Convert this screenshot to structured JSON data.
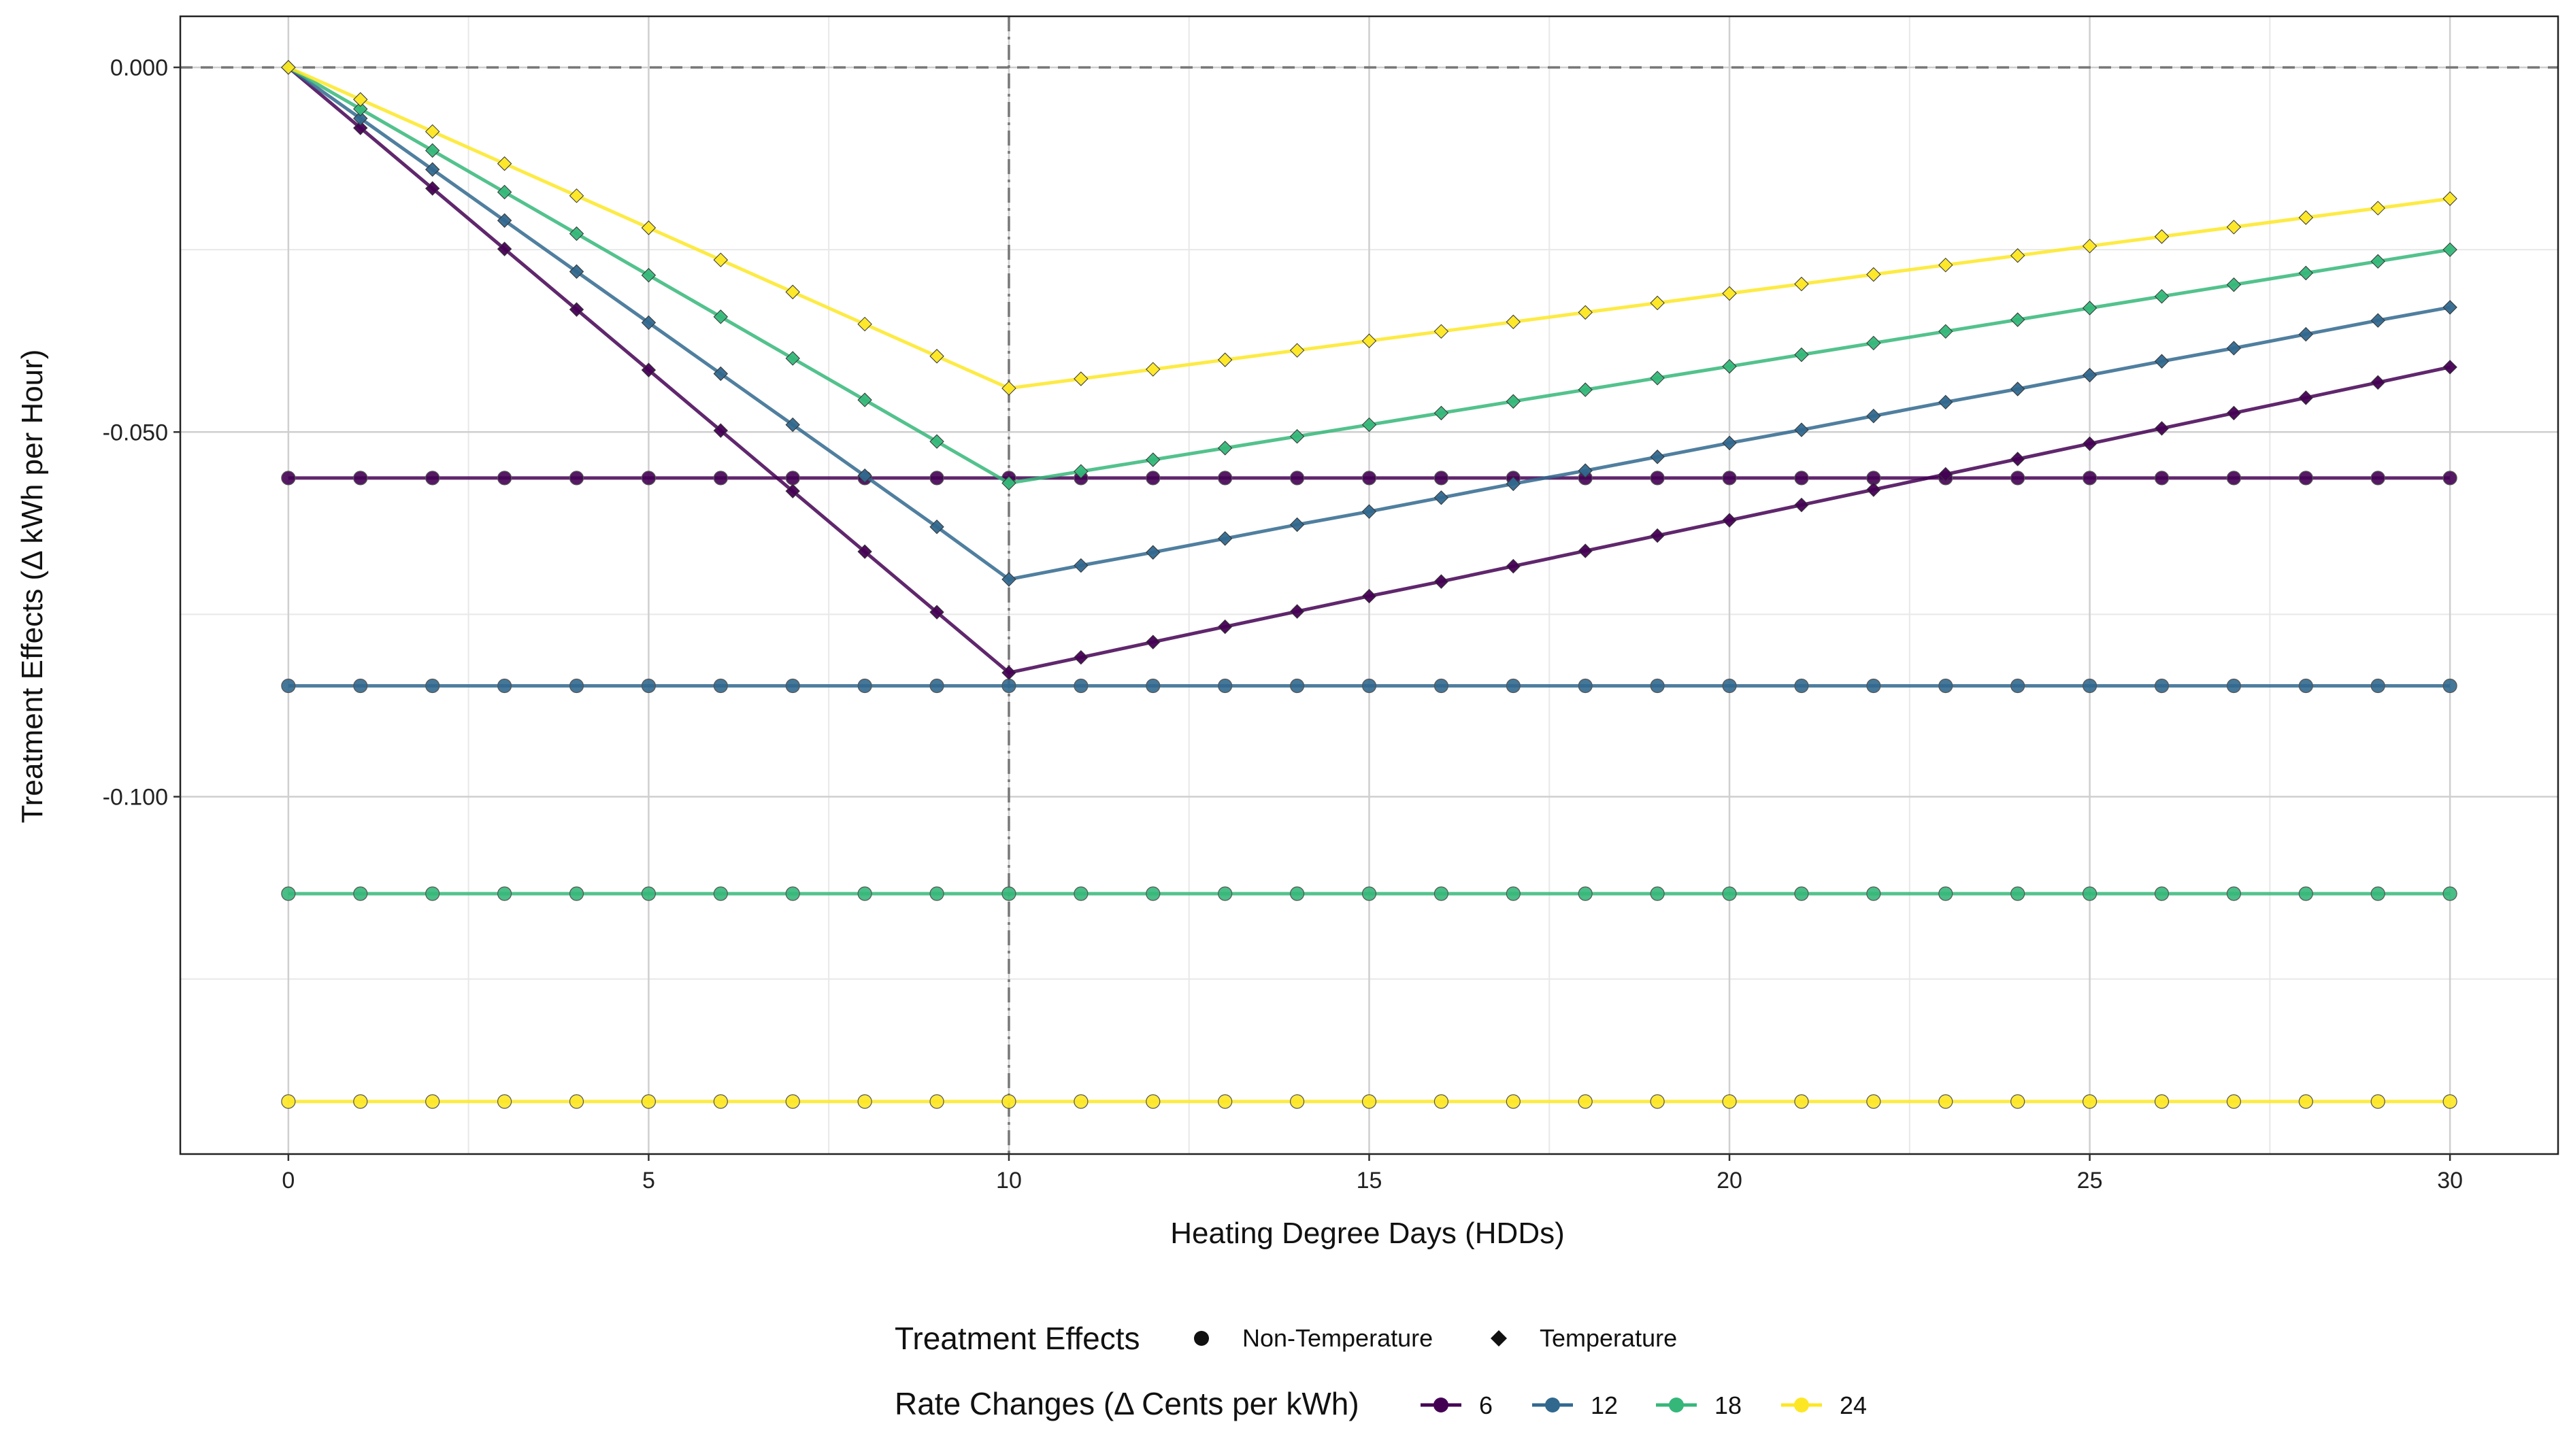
{
  "chart_data": {
    "type": "line",
    "title": "",
    "xlabel": "Heating Degree Days  (HDDs)",
    "ylabel": "Treatment Effects  (Δ kWh per Hour)",
    "xlim": [
      -1.5,
      31.5
    ],
    "ylim": [
      -0.149,
      0.007
    ],
    "x_ticks": [
      0,
      5,
      10,
      15,
      20,
      25,
      30
    ],
    "x_tick_labels": [
      "0",
      "5",
      "10",
      "15",
      "20",
      "25",
      "30"
    ],
    "y_ticks": [
      0.0,
      -0.05,
      -0.1
    ],
    "y_tick_labels": [
      "0.000",
      "-0.050",
      "-0.100"
    ],
    "minor_grid_y": [
      -0.025,
      -0.075,
      -0.125
    ],
    "minor_grid_x": [
      2.5,
      7.5,
      12.5,
      17.5,
      22.5,
      27.5
    ],
    "grid": true,
    "reference_lines": {
      "hline_y": 0.0,
      "vline_x": 10
    },
    "x": [
      0,
      1,
      2,
      3,
      4,
      5,
      6,
      7,
      8,
      9,
      10,
      11,
      12,
      13,
      14,
      15,
      16,
      17,
      18,
      19,
      20,
      21,
      22,
      23,
      24,
      25,
      26,
      27,
      28,
      29,
      30
    ],
    "series": [
      {
        "rate": "6",
        "effect": "Non-Temperature",
        "color": "#440154",
        "values": [
          -0.0563,
          -0.0563,
          -0.0563,
          -0.0563,
          -0.0563,
          -0.0563,
          -0.0563,
          -0.0563,
          -0.0563,
          -0.0563,
          -0.0563,
          -0.0563,
          -0.0563,
          -0.0563,
          -0.0563,
          -0.0563,
          -0.0563,
          -0.0563,
          -0.0563,
          -0.0563,
          -0.0563,
          -0.0563,
          -0.0563,
          -0.0563,
          -0.0563,
          -0.0563,
          -0.0563,
          -0.0563,
          -0.0563,
          -0.0563,
          -0.0563
        ]
      },
      {
        "rate": "12",
        "effect": "Non-Temperature",
        "color": "#31688e",
        "values": [
          -0.0848,
          -0.0848,
          -0.0848,
          -0.0848,
          -0.0848,
          -0.0848,
          -0.0848,
          -0.0848,
          -0.0848,
          -0.0848,
          -0.0848,
          -0.0848,
          -0.0848,
          -0.0848,
          -0.0848,
          -0.0848,
          -0.0848,
          -0.0848,
          -0.0848,
          -0.0848,
          -0.0848,
          -0.0848,
          -0.0848,
          -0.0848,
          -0.0848,
          -0.0848,
          -0.0848,
          -0.0848,
          -0.0848,
          -0.0848,
          -0.0848
        ]
      },
      {
        "rate": "18",
        "effect": "Non-Temperature",
        "color": "#35b779",
        "values": [
          -0.1133,
          -0.1133,
          -0.1133,
          -0.1133,
          -0.1133,
          -0.1133,
          -0.1133,
          -0.1133,
          -0.1133,
          -0.1133,
          -0.1133,
          -0.1133,
          -0.1133,
          -0.1133,
          -0.1133,
          -0.1133,
          -0.1133,
          -0.1133,
          -0.1133,
          -0.1133,
          -0.1133,
          -0.1133,
          -0.1133,
          -0.1133,
          -0.1133,
          -0.1133,
          -0.1133,
          -0.1133,
          -0.1133,
          -0.1133,
          -0.1133
        ]
      },
      {
        "rate": "24",
        "effect": "Non-Temperature",
        "color": "#fde725",
        "values": [
          -0.1418,
          -0.1418,
          -0.1418,
          -0.1418,
          -0.1418,
          -0.1418,
          -0.1418,
          -0.1418,
          -0.1418,
          -0.1418,
          -0.1418,
          -0.1418,
          -0.1418,
          -0.1418,
          -0.1418,
          -0.1418,
          -0.1418,
          -0.1418,
          -0.1418,
          -0.1418,
          -0.1418,
          -0.1418,
          -0.1418,
          -0.1418,
          -0.1418,
          -0.1418,
          -0.1418,
          -0.1418,
          -0.1418,
          -0.1418,
          -0.1418
        ]
      },
      {
        "rate": "6",
        "effect": "Temperature",
        "color": "#440154",
        "values": [
          0.0,
          -0.0083,
          -0.0166,
          -0.0249,
          -0.0332,
          -0.0415,
          -0.0498,
          -0.0581,
          -0.0664,
          -0.0747,
          -0.083,
          -0.0809,
          -0.0788,
          -0.0767,
          -0.0746,
          -0.0725,
          -0.0705,
          -0.0684,
          -0.0663,
          -0.0642,
          -0.0621,
          -0.06,
          -0.0579,
          -0.0558,
          -0.0537,
          -0.0516,
          -0.0495,
          -0.0474,
          -0.0453,
          -0.0432,
          -0.0411
        ]
      },
      {
        "rate": "12",
        "effect": "Temperature",
        "color": "#31688e",
        "values": [
          0.0,
          -0.007,
          -0.014,
          -0.021,
          -0.028,
          -0.035,
          -0.042,
          -0.049,
          -0.056,
          -0.063,
          -0.0702,
          -0.0683,
          -0.0665,
          -0.0646,
          -0.0627,
          -0.0609,
          -0.059,
          -0.0571,
          -0.0553,
          -0.0534,
          -0.0515,
          -0.0497,
          -0.0478,
          -0.0459,
          -0.0441,
          -0.0422,
          -0.0403,
          -0.0385,
          -0.0366,
          -0.0347,
          -0.0329
        ]
      },
      {
        "rate": "18",
        "effect": "Temperature",
        "color": "#35b779",
        "values": [
          0.0,
          -0.0057,
          -0.0114,
          -0.0171,
          -0.0228,
          -0.0285,
          -0.0342,
          -0.0399,
          -0.0456,
          -0.0513,
          -0.057,
          -0.0554,
          -0.0538,
          -0.0522,
          -0.0506,
          -0.049,
          -0.0474,
          -0.0458,
          -0.0442,
          -0.0426,
          -0.041,
          -0.0394,
          -0.0378,
          -0.0362,
          -0.0346,
          -0.033,
          -0.0314,
          -0.0298,
          -0.0282,
          -0.0266,
          -0.025
        ]
      },
      {
        "rate": "24",
        "effect": "Temperature",
        "color": "#fde725",
        "values": [
          0.0,
          -0.0044,
          -0.0088,
          -0.0132,
          -0.0176,
          -0.022,
          -0.0264,
          -0.0308,
          -0.0352,
          -0.0396,
          -0.044,
          -0.0427,
          -0.0414,
          -0.0401,
          -0.0388,
          -0.0375,
          -0.0362,
          -0.0349,
          -0.0336,
          -0.0323,
          -0.031,
          -0.0297,
          -0.0284,
          -0.0271,
          -0.0258,
          -0.0245,
          -0.0232,
          -0.0219,
          -0.0206,
          -0.0193,
          -0.018
        ]
      }
    ],
    "legend": {
      "placement": "bottom",
      "shape_title": "Treatment Effects",
      "shape_items": [
        {
          "label": "Non-Temperature",
          "shape": "circle"
        },
        {
          "label": "Temperature",
          "shape": "diamond"
        }
      ],
      "color_title": "Rate Changes  (Δ Cents per kWh)",
      "color_items": [
        {
          "label": "6",
          "color": "#440154"
        },
        {
          "label": "12",
          "color": "#31688e"
        },
        {
          "label": "18",
          "color": "#35b779"
        },
        {
          "label": "24",
          "color": "#fde725"
        }
      ]
    }
  }
}
